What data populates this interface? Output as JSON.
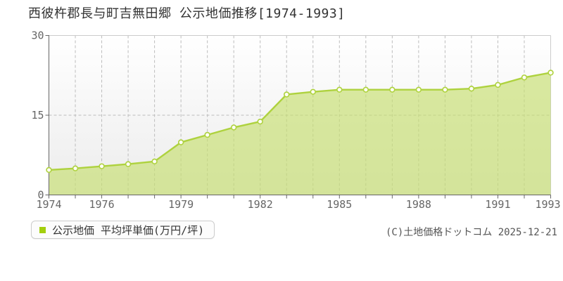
{
  "title": "西彼杵郡長与町吉無田郷 公示地価推移[1974-1993]",
  "legend": {
    "marker_color": "#a3cf0d",
    "label": "公示地価 平均坪単価(万円/坪)"
  },
  "copyright": "(C)土地価格ドットコム 2025-12-21",
  "colors": {
    "line": "#aed23e",
    "area_fill": "rgba(198,222,110,0.65)",
    "marker_fill": "#fffef5",
    "grid": "#bcbcbc",
    "axis": "#666666",
    "plot_border": "#cccccc",
    "plot_bg_top": "#ffffff",
    "plot_bg_bottom": "#ececec"
  },
  "chart_data": {
    "type": "area",
    "title": "西彼杵郡長与町吉無田郷 公示地価推移[1974-1993]",
    "series_name": "公示地価 平均坪単価(万円/坪)",
    "unit": "万円/坪",
    "x": [
      1974,
      1975,
      1976,
      1977,
      1978,
      1979,
      1980,
      1981,
      1982,
      1983,
      1984,
      1985,
      1986,
      1987,
      1988,
      1989,
      1990,
      1991,
      1992,
      1993
    ],
    "values": [
      4.7,
      5.0,
      5.4,
      5.8,
      6.3,
      9.9,
      11.3,
      12.7,
      13.8,
      18.9,
      19.4,
      19.8,
      19.8,
      19.8,
      19.8,
      19.8,
      20.0,
      20.7,
      22.1,
      23.0
    ],
    "xticks": [
      1974,
      1976,
      1979,
      1982,
      1985,
      1988,
      1991,
      1993
    ],
    "yticks": [
      0,
      15,
      30
    ],
    "ylim": [
      0,
      30
    ],
    "xlabel": "",
    "ylabel": "",
    "grid": "dashed",
    "legend_position": "bottom-left"
  }
}
